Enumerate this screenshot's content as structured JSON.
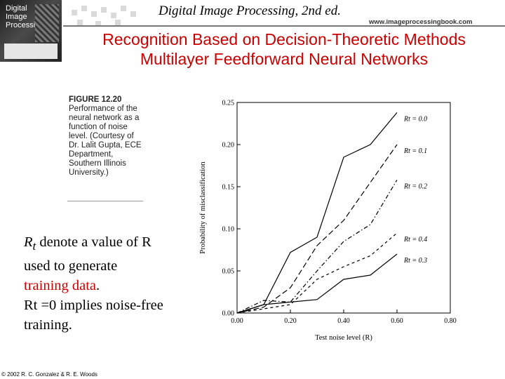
{
  "header": {
    "book_title": "Digital Image Processing, 2nd ed.",
    "website": "www.imageprocessingbook.com",
    "book_cover_lines": [
      "Digital",
      "Image",
      "Processing"
    ]
  },
  "slide": {
    "title_line1": "Recognition Based on Decision-Theoretic Methods",
    "title_line2": "Multilayer Feedforward Neural Networks"
  },
  "figure_caption": {
    "label": "FIGURE 12.20",
    "text": "Performance of the neural network as a function of noise level. (Courtesy of Dr. Lalit Gupta, ECE Department, Southern Illinois University.)"
  },
  "notes": {
    "line1_main": "R",
    "line1_sub": "t",
    "line1_rest": " denote a value of R",
    "line2": "used to generate",
    "line3_red": "training data",
    "line3_end": ".",
    "line4": "Rt =0 implies noise-free",
    "line5": "training."
  },
  "copyright": "© 2002 R. C. Gonzalez & R. E. Woods",
  "chart_data": {
    "type": "line",
    "xlabel": "Test noise level (R)",
    "ylabel": "Probability of misclassification",
    "xlim": [
      0,
      0.8
    ],
    "ylim": [
      0,
      0.25
    ],
    "xticks": [
      "0.00",
      "0.20",
      "0.40",
      "0.60",
      "0.80"
    ],
    "yticks": [
      "0.00",
      "0.05",
      "0.10",
      "0.15",
      "0.20",
      "0.25"
    ],
    "legend_placement": "right, at line ends",
    "x": [
      0,
      0.1,
      0.2,
      0.3,
      0.4,
      0.5,
      0.6
    ],
    "series": [
      {
        "name": "Rt = 0.0",
        "values": [
          0,
          0.01,
          0.072,
          0.09,
          0.185,
          0.2,
          0.238
        ],
        "dash": ""
      },
      {
        "name": "Rt = 0.1",
        "values": [
          0,
          0.007,
          0.03,
          0.08,
          0.11,
          0.155,
          0.2
        ],
        "dash": "8 4"
      },
      {
        "name": "Rt = 0.2",
        "values": [
          0,
          0.015,
          0.013,
          0.05,
          0.085,
          0.105,
          0.158
        ],
        "dash": "6 3 1.5 3"
      },
      {
        "name": "Rt = 0.4",
        "values": [
          0,
          0.005,
          0.01,
          0.04,
          0.055,
          0.068,
          0.095
        ],
        "dash": "4 4"
      },
      {
        "name": "Rt = 0.3",
        "values": [
          0,
          0.01,
          0.013,
          0.016,
          0.04,
          0.045,
          0.07
        ],
        "dash": ""
      }
    ]
  }
}
